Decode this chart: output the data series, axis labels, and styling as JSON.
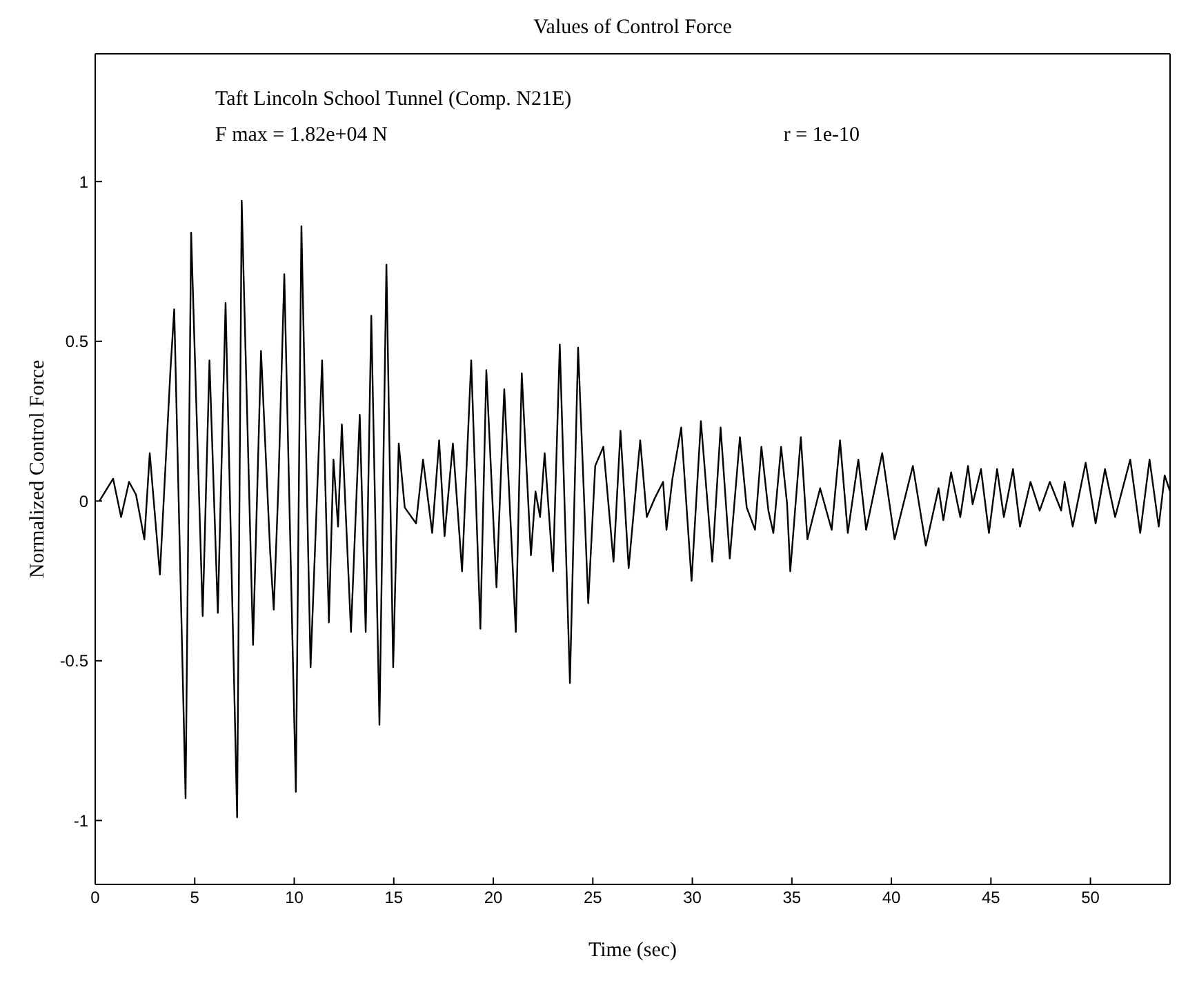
{
  "chart_data": {
    "type": "line",
    "title": "Values of Control Force",
    "xlabel": "Time (sec)",
    "ylabel": "Normalized Control Force",
    "annotations": [
      "Taft Lincoln School Tunnel (Comp. N21E)",
      "F max = 1.82e+04 N",
      "r = 1e-10"
    ],
    "xlim": [
      0,
      54
    ],
    "ylim": [
      -1.2,
      1.4
    ],
    "xticks": [
      0,
      5,
      10,
      15,
      20,
      25,
      30,
      35,
      40,
      45,
      50
    ],
    "yticks": [
      -1,
      -0.5,
      0,
      0.5,
      1
    ],
    "marker": "none",
    "line_style": "solid",
    "series": [
      {
        "color": "#000000",
        "x": [
          0.21,
          0.9,
          1.3,
          1.7,
          2.05,
          2.47,
          2.74,
          3.25,
          3.78,
          3.97,
          4.54,
          4.82,
          5.4,
          5.74,
          6.16,
          6.55,
          7.13,
          7.36,
          7.93,
          8.33,
          8.79,
          8.97,
          9.2,
          9.5,
          10.08,
          10.36,
          10.82,
          11.4,
          11.74,
          11.97,
          12.2,
          12.39,
          12.85,
          13.29,
          13.59,
          13.87,
          14.28,
          14.63,
          14.97,
          15.25,
          15.55,
          16.12,
          16.47,
          16.93,
          17.28,
          17.55,
          17.97,
          18.43,
          18.89,
          19.35,
          19.65,
          20.16,
          20.55,
          21.13,
          21.43,
          21.89,
          22.12,
          22.35,
          22.58,
          23.0,
          23.34,
          23.85,
          24.26,
          24.77,
          25.12,
          25.53,
          26.04,
          26.39,
          26.8,
          27.38,
          27.71,
          28.12,
          28.53,
          28.7,
          29.0,
          29.44,
          29.96,
          30.43,
          31.0,
          31.42,
          31.88,
          32.39,
          32.73,
          33.15,
          33.47,
          33.82,
          34.07,
          34.46,
          34.76,
          34.92,
          35.45,
          35.78,
          36.42,
          37.0,
          37.42,
          37.81,
          38.34,
          38.73,
          39.54,
          40.16,
          41.08,
          41.73,
          42.37,
          42.61,
          43.0,
          43.46,
          43.85,
          44.08,
          44.5,
          44.9,
          45.31,
          45.65,
          46.11,
          46.46,
          46.99,
          47.45,
          47.96,
          48.53,
          48.7,
          49.11,
          49.76,
          50.26,
          50.73,
          51.24,
          52.0,
          52.5,
          52.97,
          53.43,
          53.73,
          54.0
        ],
        "values": [
          0,
          0.07,
          -0.05,
          0.06,
          0.02,
          -0.12,
          0.15,
          -0.23,
          0.41,
          0.6,
          -0.93,
          0.84,
          -0.36,
          0.44,
          -0.35,
          0.62,
          -0.99,
          0.94,
          -0.45,
          0.47,
          -0.16,
          -0.34,
          0.04,
          0.71,
          -0.91,
          0.86,
          -0.52,
          0.44,
          -0.38,
          0.13,
          -0.08,
          0.24,
          -0.41,
          0.27,
          -0.41,
          0.58,
          -0.7,
          0.74,
          -0.52,
          0.18,
          -0.02,
          -0.07,
          0.13,
          -0.1,
          0.19,
          -0.11,
          0.18,
          -0.22,
          0.44,
          -0.4,
          0.41,
          -0.27,
          0.35,
          -0.41,
          0.4,
          -0.17,
          0.03,
          -0.05,
          0.15,
          -0.22,
          0.49,
          -0.57,
          0.48,
          -0.32,
          0.11,
          0.17,
          -0.19,
          0.22,
          -0.21,
          0.19,
          -0.05,
          0.01,
          0.06,
          -0.09,
          0.07,
          0.23,
          -0.25,
          0.25,
          -0.19,
          0.23,
          -0.18,
          0.2,
          -0.02,
          -0.09,
          0.17,
          -0.03,
          -0.1,
          0.17,
          -0.01,
          -0.22,
          0.2,
          -0.12,
          0.04,
          -0.09,
          0.19,
          -0.1,
          0.13,
          -0.09,
          0.15,
          -0.12,
          0.11,
          -0.14,
          0.04,
          -0.06,
          0.09,
          -0.05,
          0.11,
          -0.01,
          0.1,
          -0.1,
          0.1,
          -0.05,
          0.1,
          -0.08,
          0.06,
          -0.03,
          0.06,
          -0.03,
          0.06,
          -0.08,
          0.12,
          -0.07,
          0.1,
          -0.05,
          0.13,
          -0.1,
          0.13,
          -0.08,
          0.08,
          0.03
        ]
      }
    ]
  }
}
